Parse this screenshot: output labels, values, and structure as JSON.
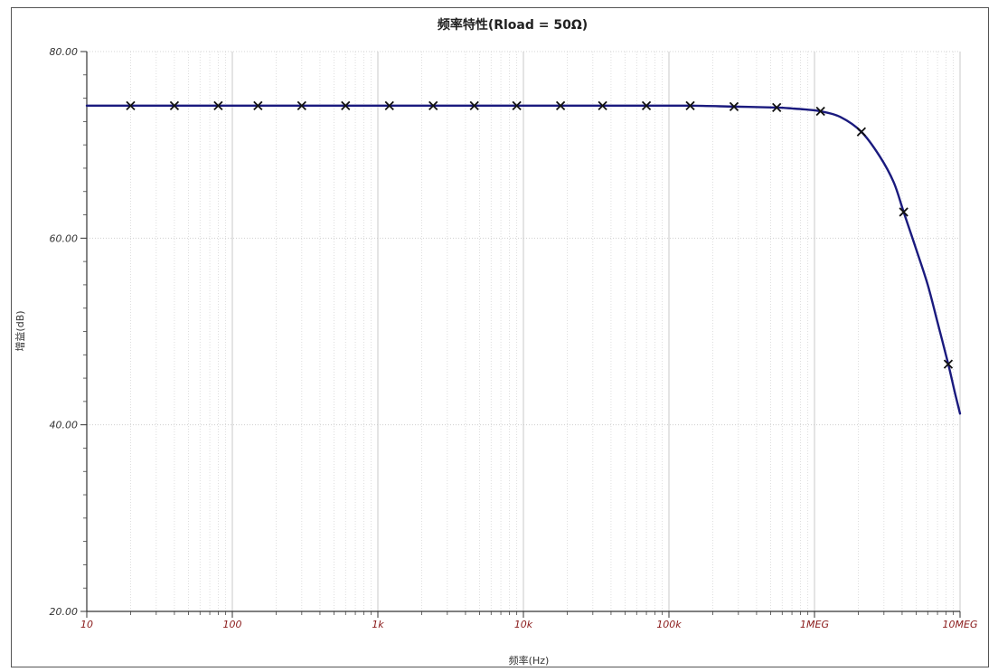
{
  "chart_data": {
    "type": "line",
    "title": "频率特性(Rload = 50Ω)",
    "xlabel": "频率(Hz)",
    "ylabel": "增益(dB)",
    "xscale": "log",
    "xlim": [
      10,
      10000000
    ],
    "ylim": [
      20,
      80
    ],
    "grid": true,
    "y_ticks": [
      20,
      40,
      60,
      80
    ],
    "y_tick_labels": [
      "20.00",
      "40.00",
      "60.00",
      "80.00"
    ],
    "x_ticks": [
      10,
      100,
      1000,
      10000,
      100000,
      1000000,
      10000000
    ],
    "x_tick_labels": [
      "10",
      "100",
      "1k",
      "10k",
      "100k",
      "1MEG",
      "10MEG"
    ],
    "series": [
      {
        "color": "#1a1a7e",
        "x": [
          10,
          20,
          40,
          80,
          150,
          300,
          600,
          1200,
          2400,
          4600,
          9000,
          18000,
          35000,
          70000,
          140000,
          280000,
          550000,
          700000,
          850000,
          1100000,
          1500000,
          2100000,
          2800000,
          3500000,
          4100000,
          5000000,
          6000000,
          7000000,
          8300000,
          9200000,
          10000000
        ],
        "y": [
          74.2,
          74.2,
          74.2,
          74.2,
          74.2,
          74.2,
          74.2,
          74.2,
          74.2,
          74.2,
          74.2,
          74.2,
          74.2,
          74.2,
          74.2,
          74.1,
          74.0,
          73.9,
          73.8,
          73.6,
          73.0,
          71.4,
          68.8,
          66.0,
          62.8,
          58.8,
          55.0,
          51.0,
          46.5,
          43.5,
          41.2
        ],
        "markers_x": [
          20,
          40,
          80,
          150,
          300,
          600,
          1200,
          2400,
          4600,
          9000,
          18000,
          35000,
          70000,
          140000,
          280000,
          550000,
          1100000,
          2100000,
          4100000,
          8300000
        ],
        "markers_y": [
          74.2,
          74.2,
          74.2,
          74.2,
          74.2,
          74.2,
          74.2,
          74.2,
          74.2,
          74.2,
          74.2,
          74.2,
          74.2,
          74.2,
          74.1,
          74.0,
          73.6,
          71.4,
          62.8,
          46.5
        ]
      }
    ]
  }
}
